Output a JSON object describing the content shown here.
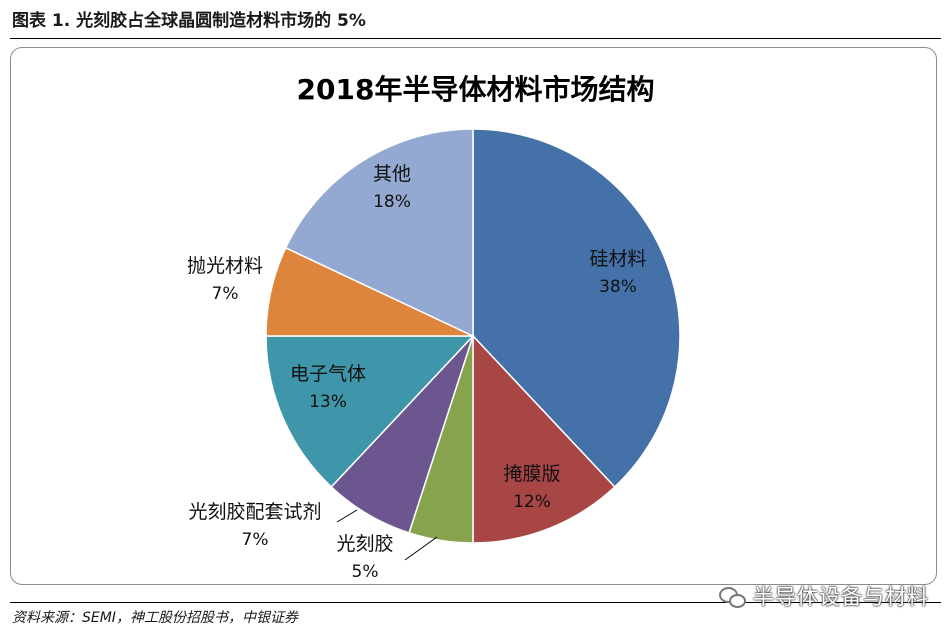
{
  "figure": {
    "caption": "图表 1. 光刻胶占全球晶圆制造材料市场的 5%",
    "source": "资料来源：SEMI，神工股份招股书，中银证券",
    "watermark": "半导体设备与材料"
  },
  "chart_data": {
    "type": "pie",
    "title": "2018年半导体材料市场结构",
    "legend": "none",
    "start": "12 o'clock",
    "direction": "clockwise",
    "slices": [
      {
        "label": "硅材料",
        "value": 38,
        "display": "38%",
        "color": "#4472a8"
      },
      {
        "label": "掩膜版",
        "value": 12,
        "display": "12%",
        "color": "#a84545"
      },
      {
        "label": "光刻胶",
        "value": 5,
        "display": "5%",
        "color": "#87a34e"
      },
      {
        "label": "光刻胶配套试剂",
        "value": 7,
        "display": "7%",
        "color": "#6c5690"
      },
      {
        "label": "电子气体",
        "value": 13,
        "display": "13%",
        "color": "#3f96aa"
      },
      {
        "label": "抛光材料",
        "value": 7,
        "display": "7%",
        "color": "#dd843d"
      },
      {
        "label": "其他",
        "value": 18,
        "display": "18%",
        "color": "#94a9d1"
      }
    ]
  }
}
